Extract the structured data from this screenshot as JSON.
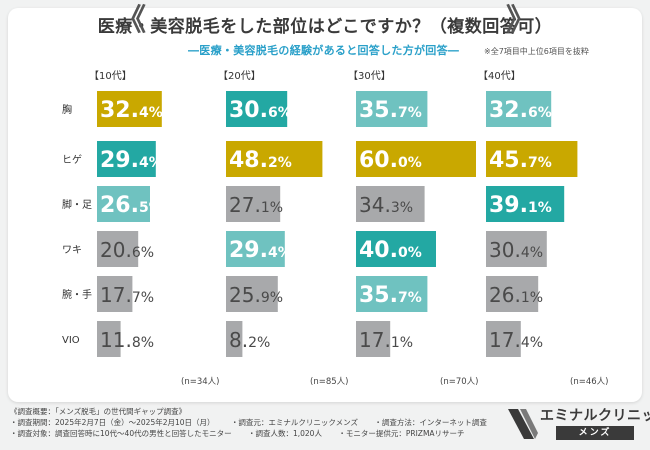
{
  "header": {
    "title_main": "医療・美容脱毛をした部位はどこですか？",
    "title_suffix": "（複数回答可）",
    "subtitle": "―医療・美容脱毛の経験があると回答した方が回答―",
    "note": "※全7項目中上位6項目を抜粋"
  },
  "colors": {
    "top": "#c9a800",
    "second": "#23a8a3",
    "third": "#6fc2c0",
    "other": "#a8a9ab"
  },
  "chart_data": {
    "type": "bar",
    "orientation": "horizontal",
    "title": "医療・美容脱毛をした部位はどこですか？（複数回答可）",
    "categories": [
      "胸",
      "ヒゲ",
      "脚・足",
      "ワキ",
      "腕・手",
      "VIO"
    ],
    "unit": "%",
    "series": [
      {
        "name": "【10代】",
        "n": "(n=34人)",
        "values": [
          32.4,
          29.4,
          26.5,
          20.6,
          17.7,
          11.8
        ],
        "ranks": [
          "top",
          "second",
          "third",
          "other",
          "other",
          "other"
        ]
      },
      {
        "name": "【20代】",
        "n": "(n=85人)",
        "values": [
          30.6,
          48.2,
          27.1,
          29.4,
          25.9,
          8.2
        ],
        "ranks": [
          "second",
          "top",
          "other",
          "third",
          "other",
          "other"
        ]
      },
      {
        "name": "【30代】",
        "n": "(n=70人)",
        "values": [
          35.7,
          60.0,
          34.3,
          40.0,
          35.7,
          17.1
        ],
        "ranks": [
          "third",
          "top",
          "other",
          "second",
          "third",
          "other"
        ]
      },
      {
        "name": "【40代】",
        "n": "(n=46人)",
        "values": [
          32.6,
          45.7,
          39.1,
          30.4,
          26.1,
          17.4
        ],
        "ranks": [
          "third",
          "top",
          "second",
          "other",
          "other",
          "other"
        ]
      }
    ],
    "xlim": [
      0,
      60
    ]
  },
  "footer": {
    "line1": "《調査概要：「メンズ脱毛」の世代間ギャップ調査》",
    "line2": [
      "・調査期間：2025年2月7日（金）～2025年2月10日（月）",
      "・調査元：エミナルクリニックメンズ",
      "・調査方法：インターネット調査"
    ],
    "line3": [
      "・調査対象：調査回答時に10代～40代の男性と回答したモニター",
      "・調査人数：1,020人",
      "・モニター提供元：PRIZMAリサーチ"
    ]
  },
  "logo": {
    "name": "エミナルクリニック",
    "sub": "メンズ"
  }
}
